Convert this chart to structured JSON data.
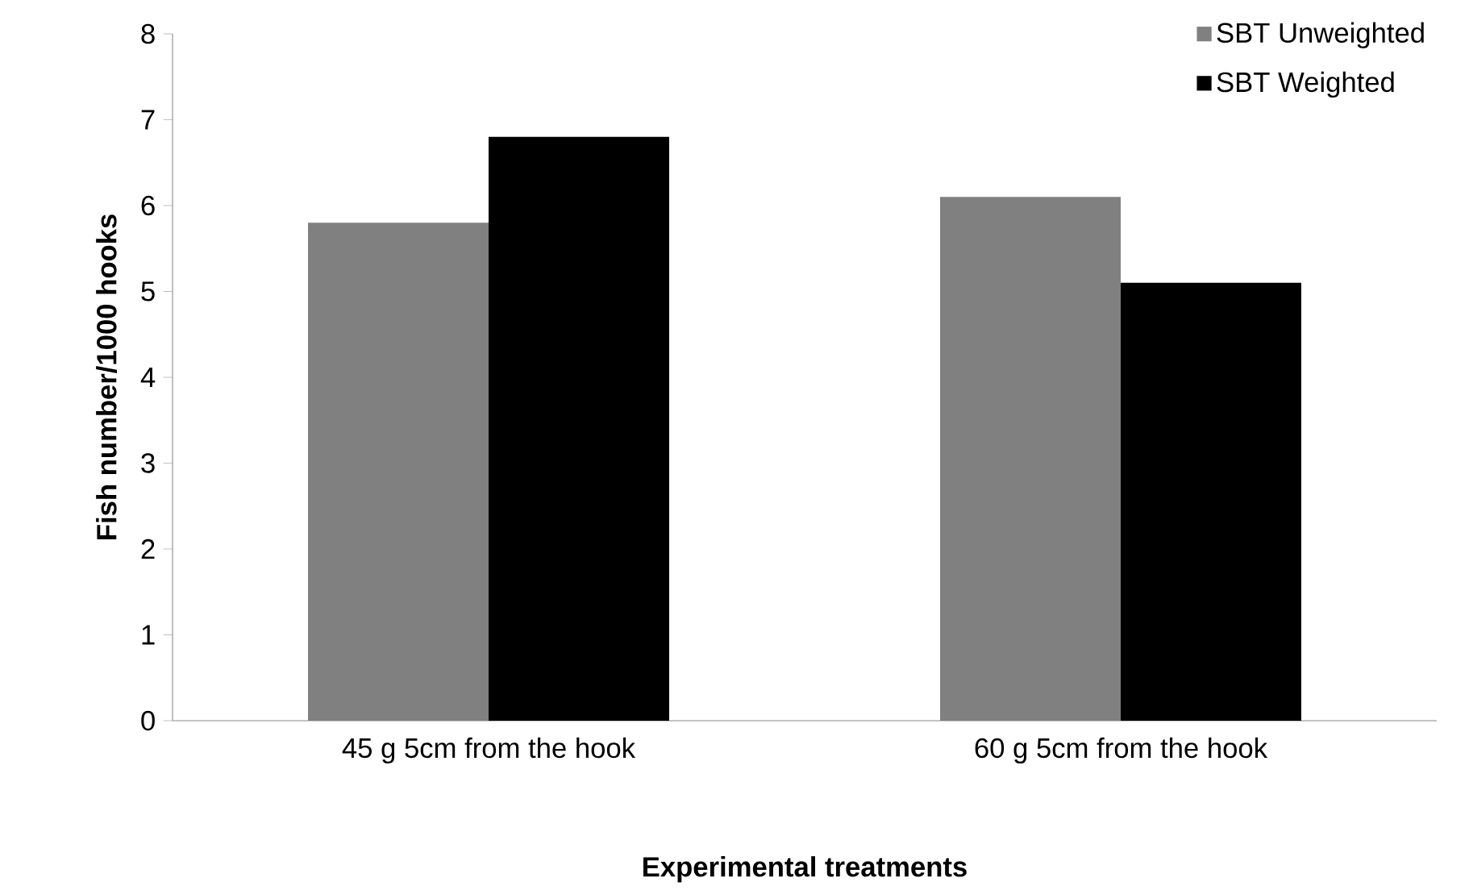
{
  "chart_data": {
    "type": "bar",
    "xlabel": "Experimental treatments",
    "ylabel": "Fish number/1000 hooks",
    "categories": [
      "45 g 5cm from the hook",
      "60 g 5cm from the hook"
    ],
    "series": [
      {
        "name": "SBT Unweighted",
        "color": "#808080",
        "values": [
          5.8,
          6.1
        ]
      },
      {
        "name": "SBT Weighted",
        "color": "#000000",
        "values": [
          6.8,
          5.1
        ]
      }
    ],
    "ylim": [
      0,
      8
    ],
    "yticks": [
      0,
      1,
      2,
      3,
      4,
      5,
      6,
      7,
      8
    ],
    "grid": false,
    "legend": "top right"
  }
}
